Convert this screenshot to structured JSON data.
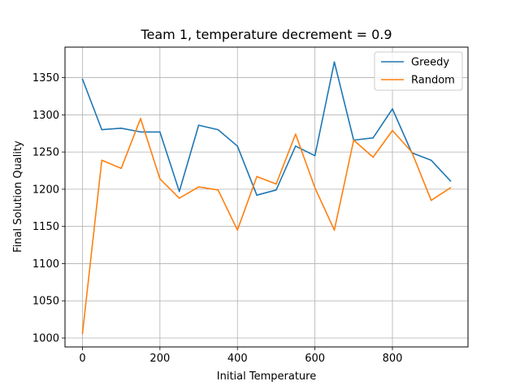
{
  "chart_data": {
    "type": "line",
    "title": "Team 1, temperature decrement = 0.9",
    "xlabel": "Initial Temperature",
    "ylabel": "Final Solution Quality",
    "xlim": [
      -45,
      995
    ],
    "ylim": [
      988,
      1391
    ],
    "xticks": [
      0,
      200,
      400,
      600,
      800
    ],
    "yticks": [
      1000,
      1050,
      1100,
      1150,
      1200,
      1250,
      1300,
      1350
    ],
    "grid": true,
    "legend_position": "top-right",
    "x": [
      0,
      50,
      100,
      150,
      200,
      250,
      300,
      350,
      400,
      450,
      500,
      550,
      600,
      650,
      700,
      750,
      800,
      850,
      900,
      950
    ],
    "series": [
      {
        "name": "Greedy",
        "color": "#1f77b4",
        "values": [
          1348,
          1280,
          1282,
          1277,
          1277,
          1197,
          1286,
          1280,
          1258,
          1192,
          1199,
          1258,
          1245,
          1371,
          1266,
          1269,
          1308,
          1249,
          1239,
          1211
        ]
      },
      {
        "name": "Random",
        "color": "#ff7f0e",
        "values": [
          1006,
          1239,
          1228,
          1295,
          1214,
          1188,
          1203,
          1199,
          1145,
          1217,
          1207,
          1274,
          1202,
          1145,
          1266,
          1243,
          1279,
          1250,
          1185,
          1202
        ]
      }
    ]
  }
}
